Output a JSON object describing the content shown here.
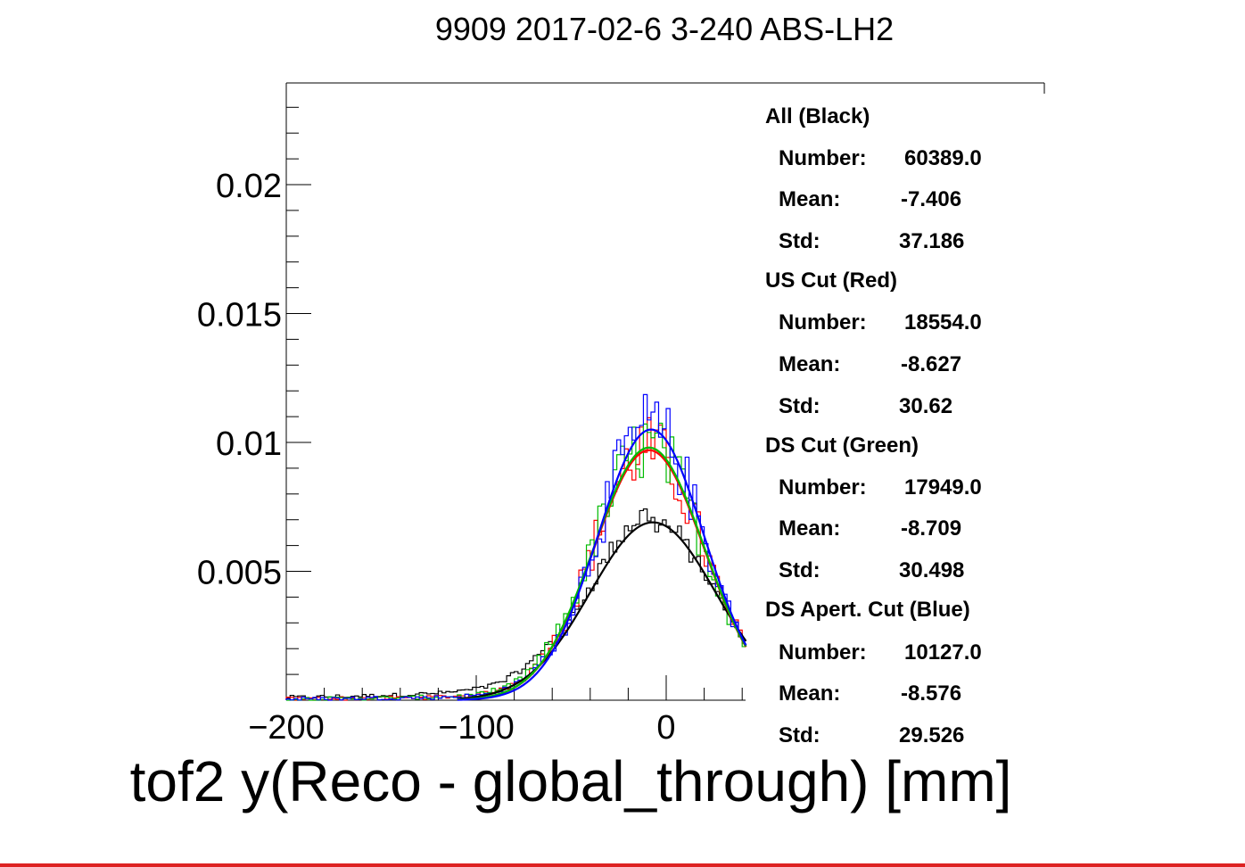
{
  "chart_data": {
    "type": "line",
    "title": "9909 2017-02-6 3-240 ABS-LH2",
    "xlabel": "tof2 y(Reco - global_through) [mm]",
    "ylabel": "",
    "xlim": [
      -200,
      42
    ],
    "ylim": [
      0,
      0.024
    ],
    "xticks": [
      {
        "value": -200,
        "label": "−200"
      },
      {
        "value": -100,
        "label": "−100"
      },
      {
        "value": 0,
        "label": "0"
      }
    ],
    "yticks": [
      {
        "value": 0.005,
        "label": "0.005"
      },
      {
        "value": 0.01,
        "label": "0.01"
      },
      {
        "value": 0.015,
        "label": "0.015"
      },
      {
        "value": 0.02,
        "label": "0.02"
      }
    ],
    "grid": false,
    "series": [
      {
        "name": "All (Black)",
        "color": "#000000",
        "entries": 60389,
        "mean": -7.406,
        "std": 37.186,
        "peak": 0.0069,
        "fit_mean": -7,
        "fit_sigma": 33
      },
      {
        "name": "US Cut (Red)",
        "color": "#ff0000",
        "entries": 18554,
        "mean": -8.627,
        "std": 30.62,
        "peak": 0.0097,
        "fit_mean": -9,
        "fit_sigma": 29
      },
      {
        "name": "DS Cut (Green)",
        "color": "#00bb00",
        "entries": 17949,
        "mean": -8.709,
        "std": 30.498,
        "peak": 0.0098,
        "fit_mean": -9,
        "fit_sigma": 29
      },
      {
        "name": "DS Apert. Cut (Blue)",
        "color": "#0000ff",
        "entries": 10127,
        "mean": -8.576,
        "std": 29.526,
        "peak": 0.0105,
        "fit_mean": -8,
        "fit_sigma": 28
      }
    ]
  },
  "stats_box": {
    "groups": [
      {
        "heading": "All (Black)",
        "rows": [
          {
            "label": "Number:",
            "value": "60389.0"
          },
          {
            "label": "Mean:",
            "value": "-7.406"
          },
          {
            "label": "Std:",
            "value": "37.186"
          }
        ]
      },
      {
        "heading": "US Cut (Red)",
        "rows": [
          {
            "label": "Number:",
            "value": "18554.0"
          },
          {
            "label": "Mean:",
            "value": "-8.627"
          },
          {
            "label": "Std:",
            "value": "30.62"
          }
        ]
      },
      {
        "heading": "DS Cut (Green)",
        "rows": [
          {
            "label": "Number:",
            "value": "17949.0"
          },
          {
            "label": "Mean:",
            "value": "-8.709"
          },
          {
            "label": "Std:",
            "value": "30.498"
          }
        ]
      },
      {
        "heading": "DS Apert. Cut (Blue)",
        "rows": [
          {
            "label": "Number:",
            "value": "10127.0"
          },
          {
            "label": "Mean:",
            "value": "-8.576"
          },
          {
            "label": "Std:",
            "value": "29.526"
          }
        ]
      }
    ]
  }
}
